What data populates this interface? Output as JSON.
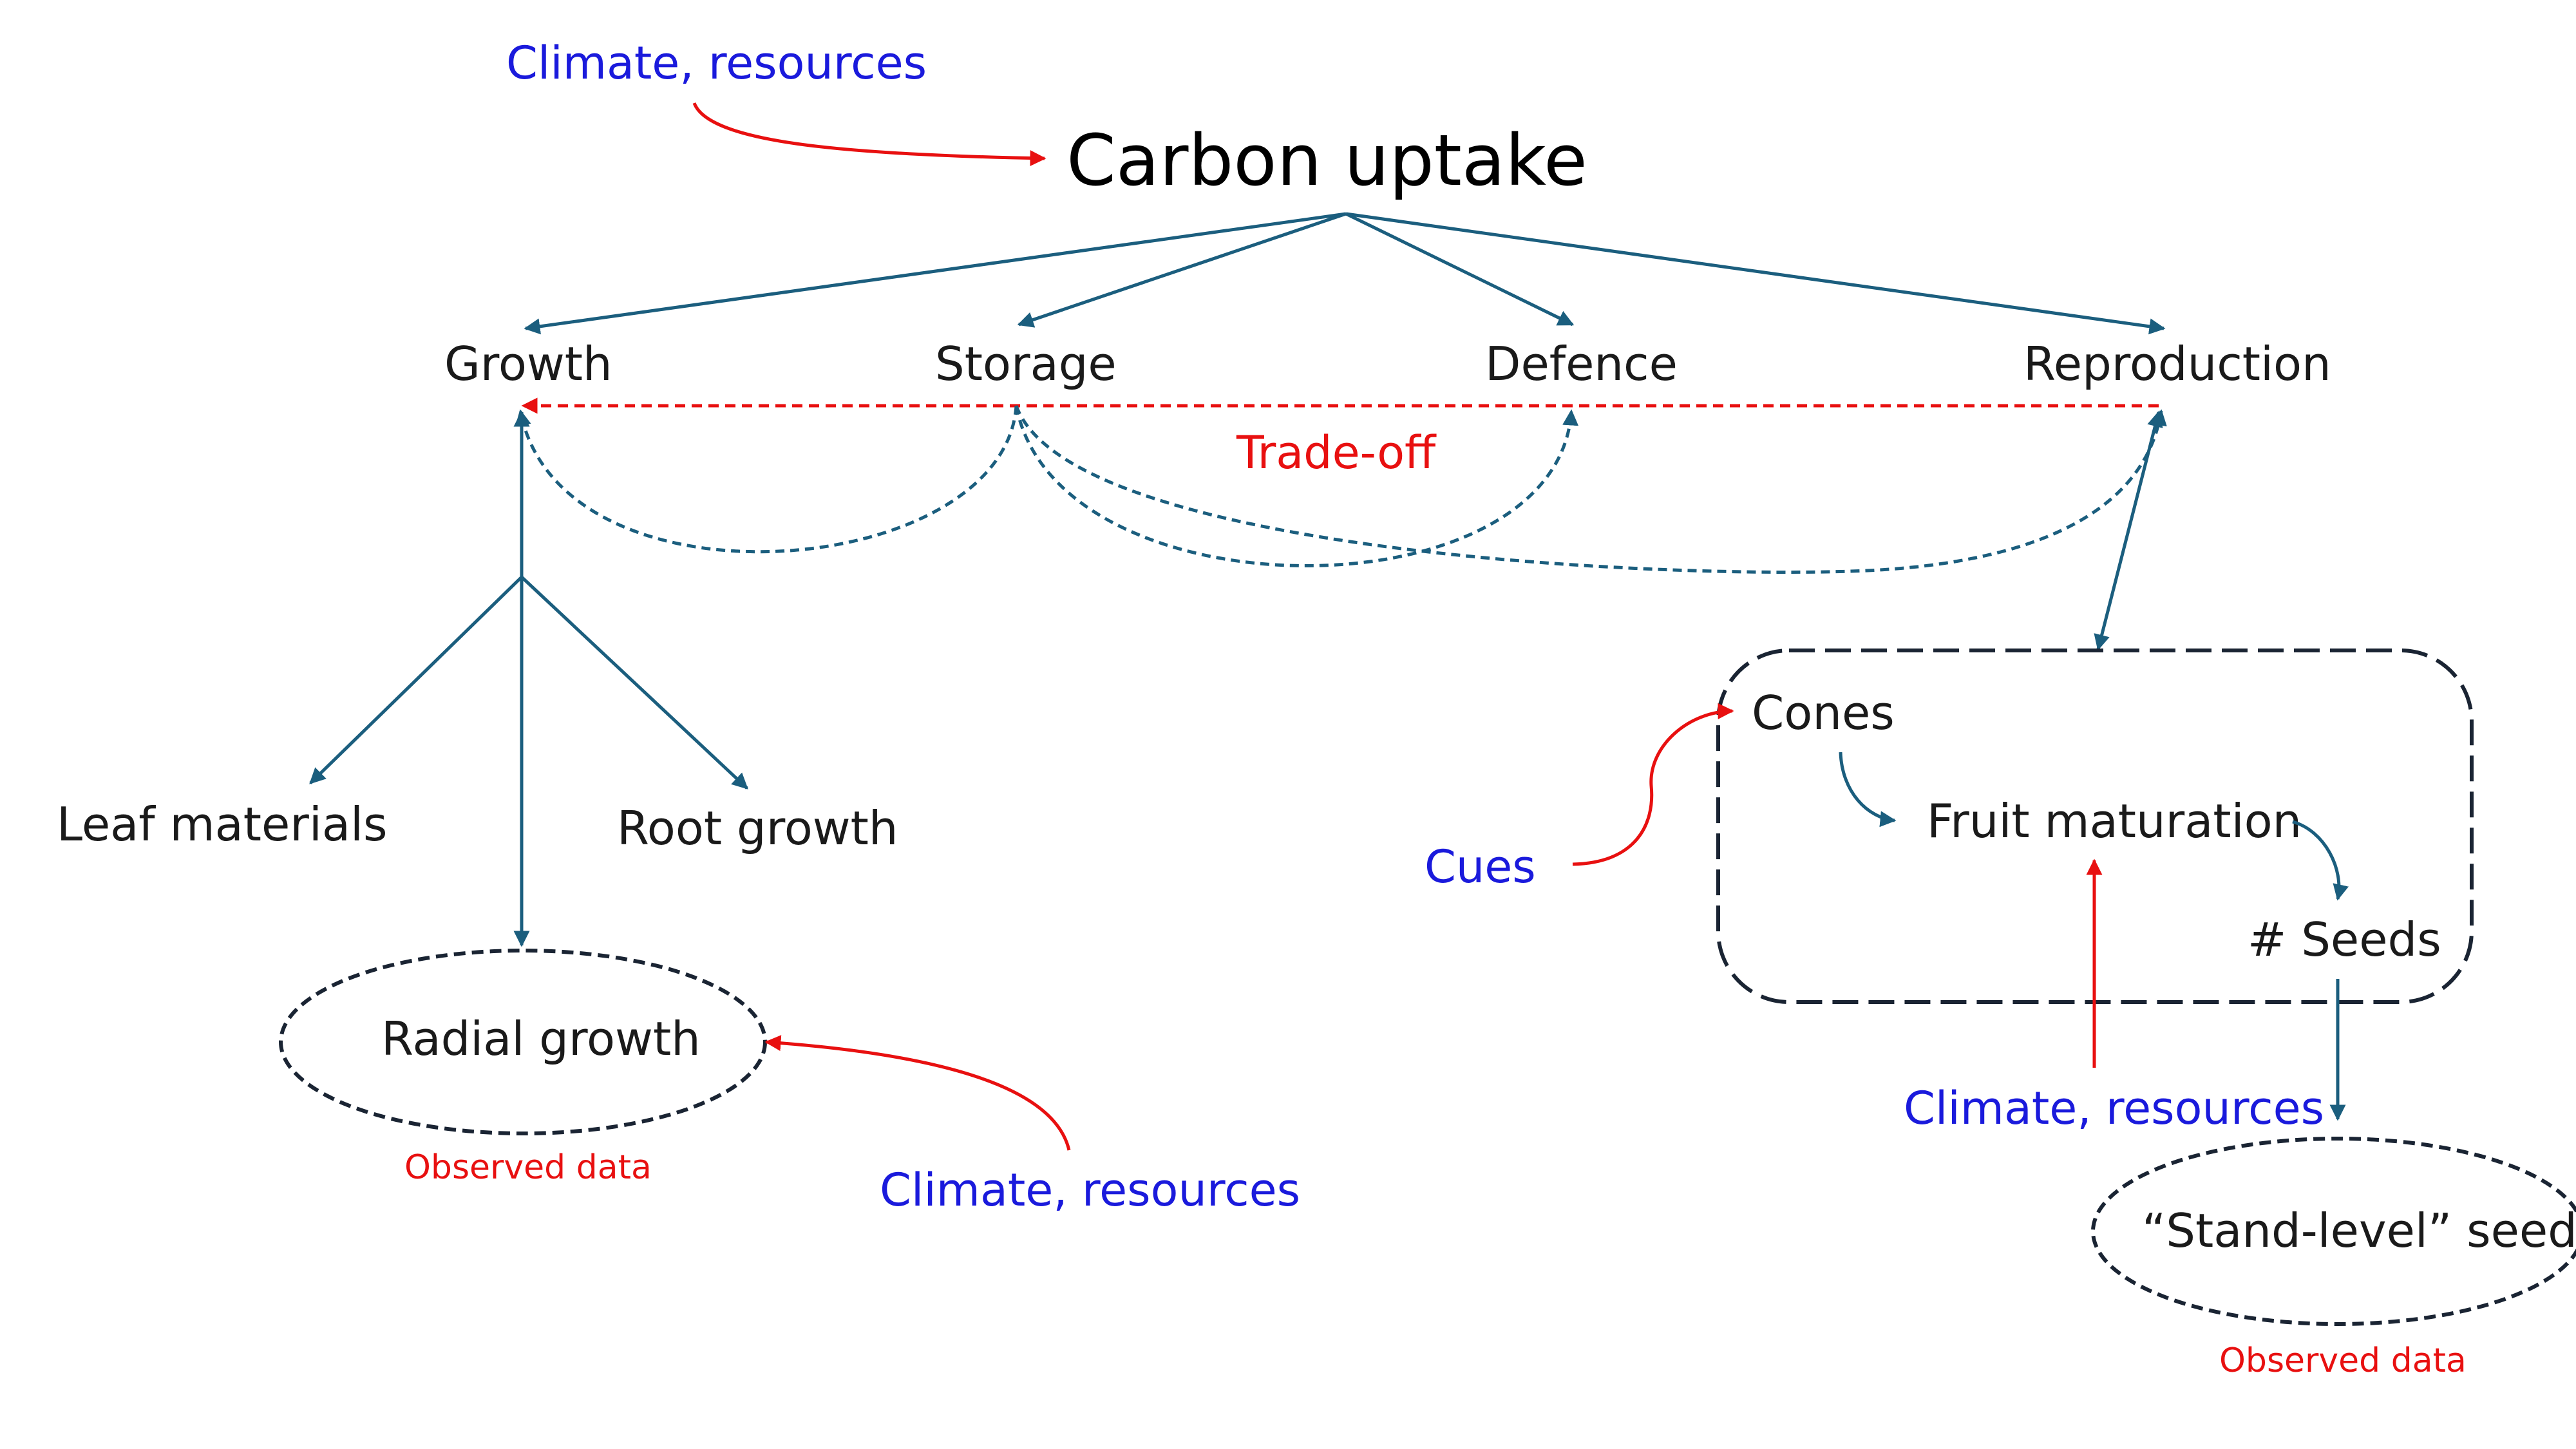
{
  "diagram": {
    "carbon_uptake": "Carbon uptake",
    "growth": "Growth",
    "storage": "Storage",
    "defence": "Defence",
    "reproduction": "Reproduction",
    "trade_off": "Trade-off",
    "leaf_materials": "Leaf materials",
    "root_growth": "Root growth",
    "radial_growth": "Radial growth",
    "cones": "Cones",
    "fruit_maturation": "Fruit maturation",
    "seeds": "# Seeds",
    "stand_level_seeds": "“Stand-level” seeds",
    "cues": "Cues",
    "climate_resources_top": "Climate, resources",
    "climate_resources_radial": "Climate, resources",
    "climate_resources_fruit": "Climate, resources",
    "observed_data_radial": "Observed data",
    "observed_data_seeds": "Observed data"
  },
  "colors": {
    "edge": "#1b5e7e",
    "driver_text": "#1a1adc",
    "driver_arrow": "#e81010",
    "observed": "#e81010"
  }
}
